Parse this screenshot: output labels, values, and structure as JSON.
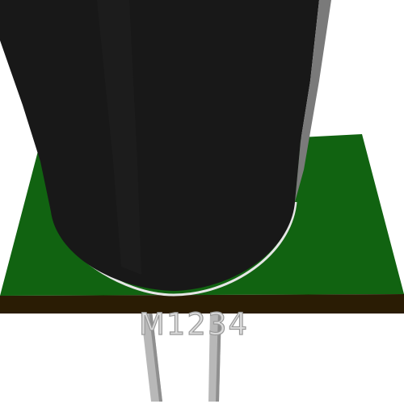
{
  "scene": {
    "component_label": "M1234"
  },
  "colors": {
    "background": "#ffffff",
    "board_top": "#116311",
    "board_top_dark": "#0a520b",
    "board_edge": "#2a1c04",
    "component_body": "#181818",
    "component_highlight": "#3a3a3a",
    "outline_ring": "#e6e6e6",
    "pin": "#b8b8b8",
    "pin_shade": "#8f8f8f",
    "label_fill": "#dcdcdc",
    "label_stroke": "#9a9a9a"
  }
}
